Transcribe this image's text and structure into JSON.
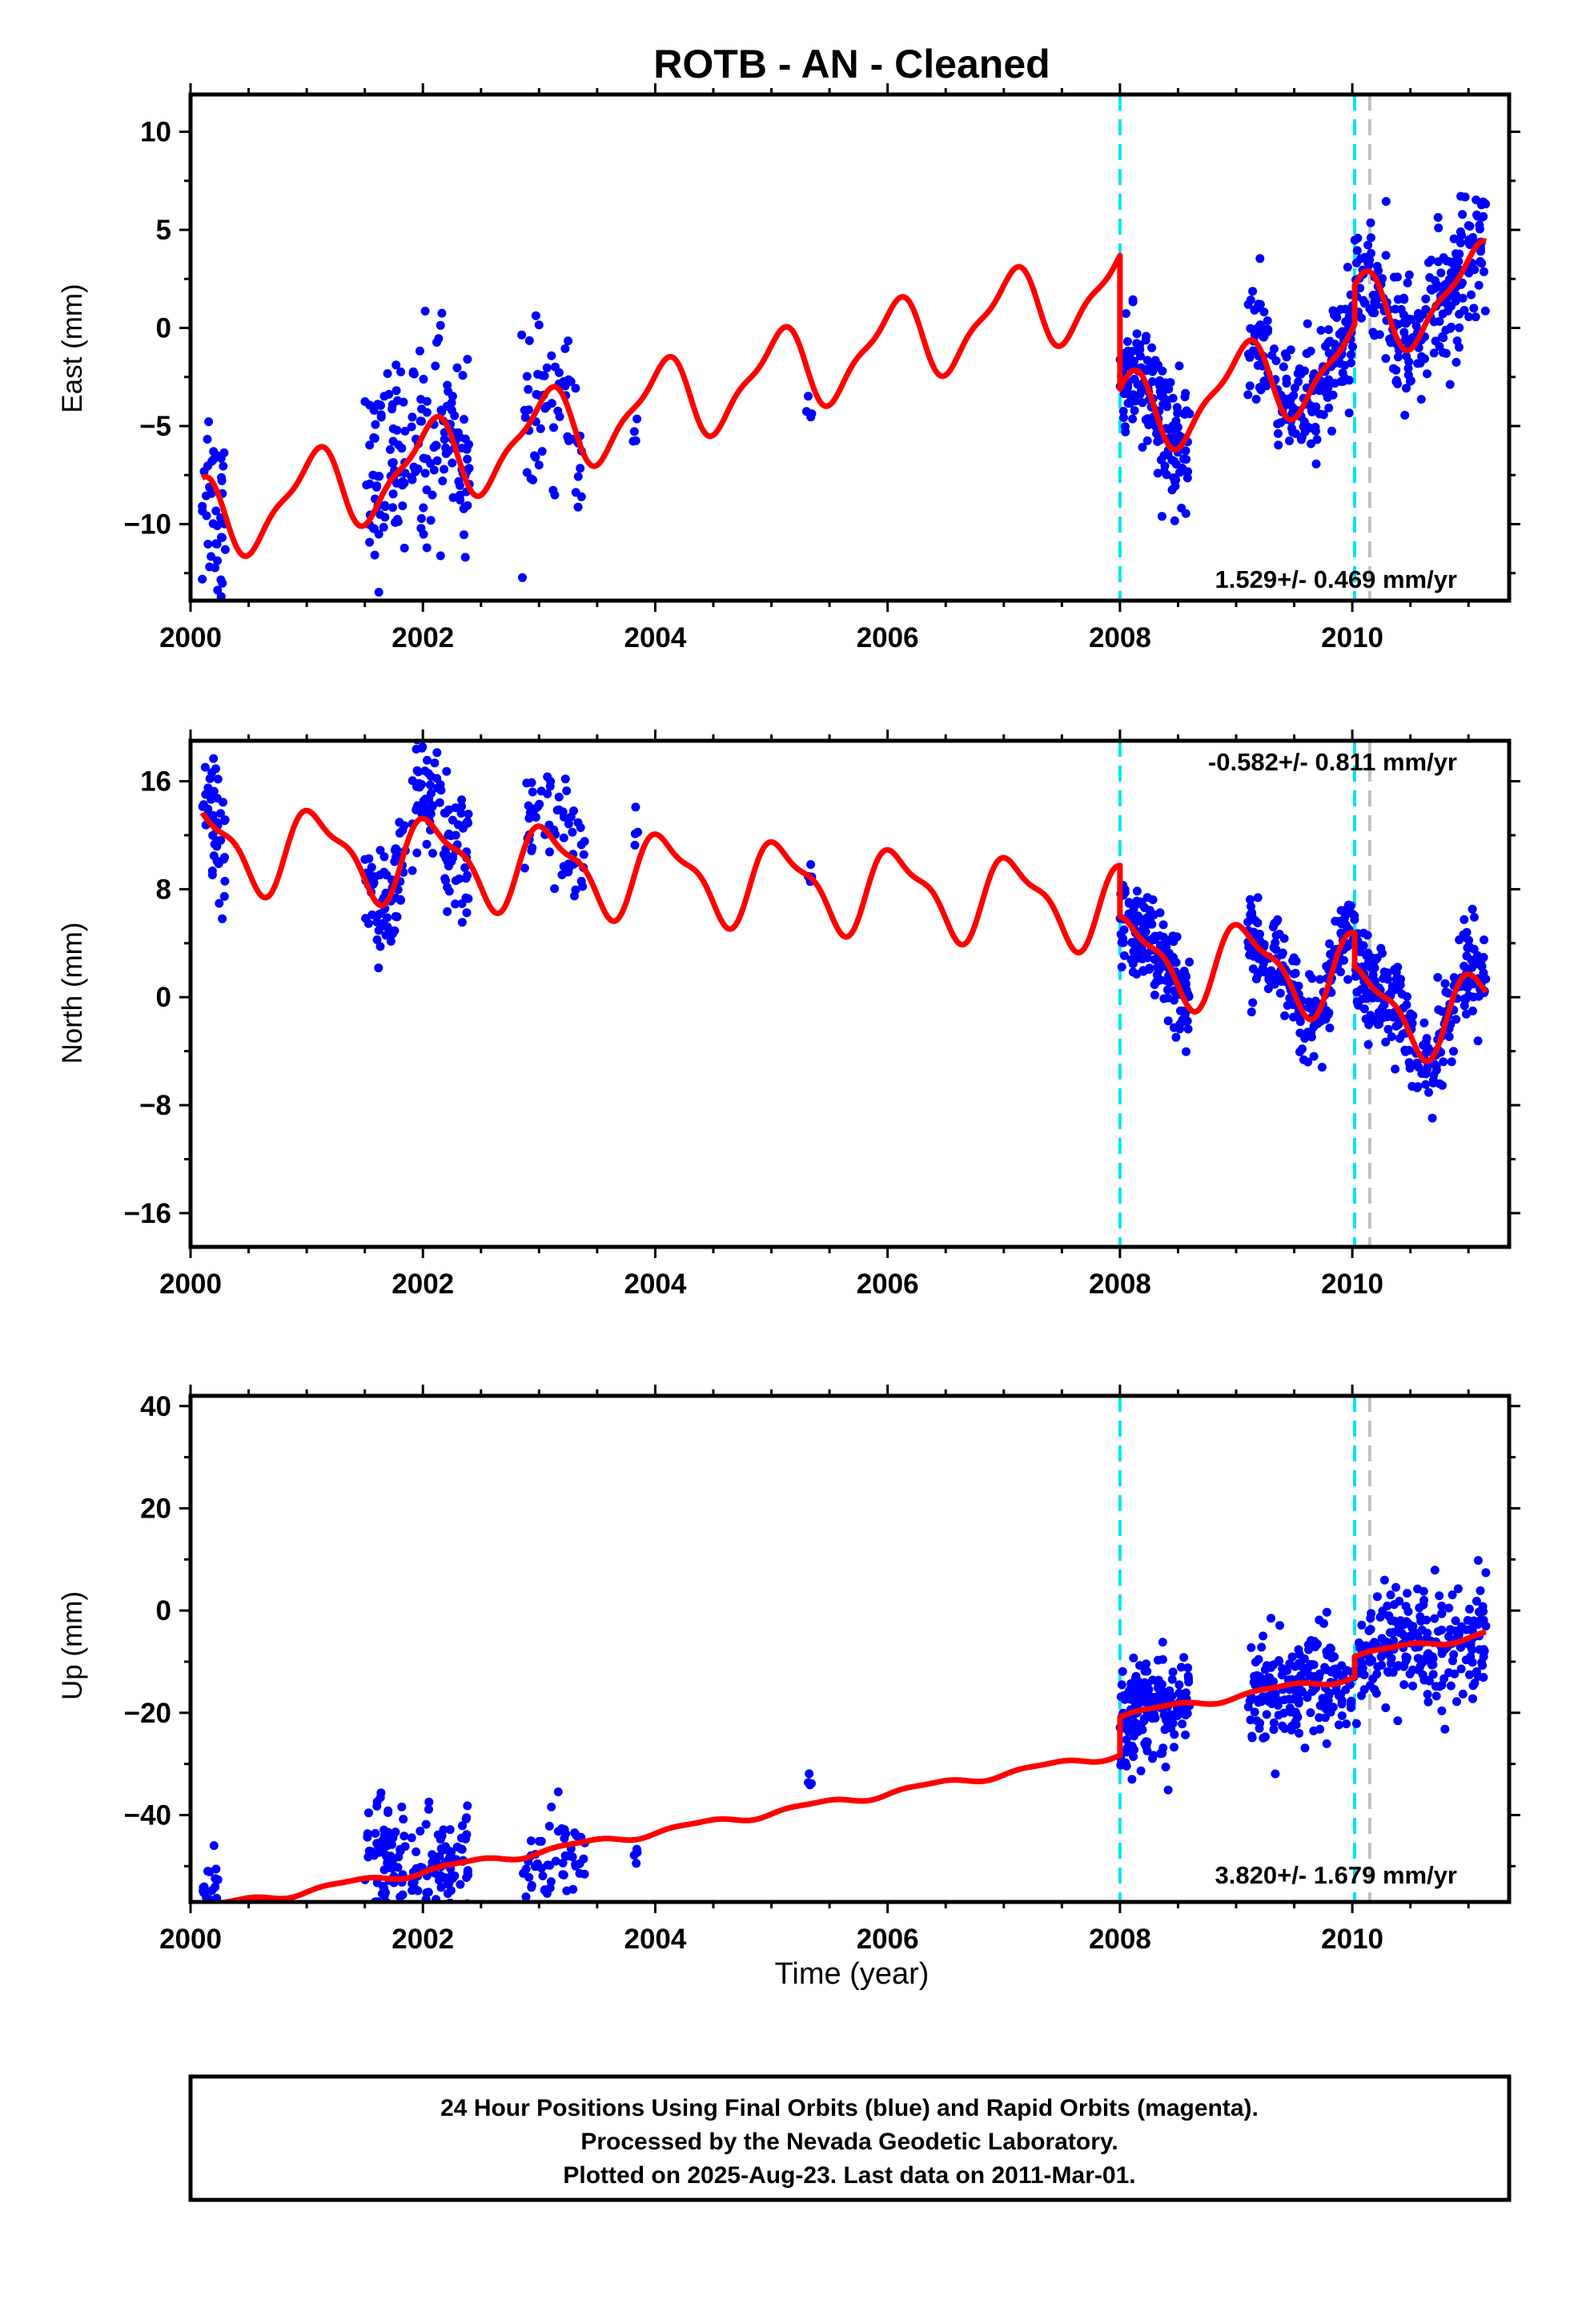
{
  "figure": {
    "title": "ROTB  - AN - Cleaned",
    "caption_lines": [
      "24 Hour Positions Using Final Orbits (blue) and Rapid Orbits (magenta).",
      "Processed by the Nevada Geodetic Laboratory.",
      "Plotted on 2025-Aug-23. Last data on 2011-Mar-01."
    ],
    "colors": {
      "points": "#0000ff",
      "model": "#ff0000",
      "equipment_change": "#00e5ee",
      "event": "#c0c0c0"
    }
  },
  "chart_data": [
    {
      "type": "scatter",
      "ylabel": "East (mm)",
      "xlabel": "",
      "xlim": [
        2000,
        2011.35
      ],
      "ylim": [
        -13.9,
        11.9
      ],
      "xticks": [
        2000,
        2002,
        2004,
        2006,
        2008,
        2010
      ],
      "yticks": [
        -10,
        -5,
        0,
        5,
        10
      ],
      "rate_text": "1.529+/- 0.469 mm/yr",
      "rate_position": "bottom-right",
      "vertical_lines": [
        {
          "x": 2008.0,
          "style": "equipment_change"
        },
        {
          "x": 2010.02,
          "style": "equipment_change"
        },
        {
          "x": 2010.15,
          "style": "event"
        }
      ],
      "model": {
        "rate": 1.529,
        "offset": -2.4,
        "annual_sin": 0.6,
        "annual_cos": 1.9,
        "semi_sin": 0.5,
        "semi_cos": -0.4,
        "steps": [
          {
            "x": 2008.0,
            "size": -6.8
          },
          {
            "x": 2010.02,
            "size": 2.0
          }
        ]
      },
      "point_segments": [
        {
          "start": 2000.1,
          "end": 2000.3,
          "count": 45,
          "spread": 2.8,
          "shift": -0.6
        },
        {
          "start": 2001.5,
          "end": 2001.85,
          "count": 70,
          "spread": 2.4,
          "shift": 1.2
        },
        {
          "start": 2001.9,
          "end": 2002.18,
          "count": 50,
          "spread": 3.0,
          "shift": -0.4
        },
        {
          "start": 2002.18,
          "end": 2002.4,
          "count": 50,
          "spread": 2.0,
          "shift": 0.6
        },
        {
          "start": 2002.85,
          "end": 2003.4,
          "count": 60,
          "spread": 2.0,
          "shift": -0.4
        },
        {
          "start": 2003.8,
          "end": 2003.85,
          "count": 4,
          "spread": 0.6,
          "shift": -1.2
        },
        {
          "start": 2005.3,
          "end": 2005.35,
          "count": 4,
          "spread": 0.7,
          "shift": -2.0
        },
        {
          "start": 2008.0,
          "end": 2008.6,
          "count": 180,
          "spread": 1.5,
          "shift": 0.0
        },
        {
          "start": 2009.1,
          "end": 2010.1,
          "count": 220,
          "spread": 1.5,
          "shift": 0.0
        },
        {
          "start": 2010.1,
          "end": 2011.15,
          "count": 230,
          "spread": 1.7,
          "shift": 0.0
        }
      ]
    },
    {
      "type": "scatter",
      "ylabel": "North (mm)",
      "xlabel": "",
      "xlim": [
        2000,
        2011.35
      ],
      "ylim": [
        -18.5,
        19.0
      ],
      "xticks": [
        2000,
        2002,
        2004,
        2006,
        2008,
        2010
      ],
      "yticks": [
        -16,
        -8,
        0,
        8,
        16
      ],
      "rate_text": "-0.582+/- 0.811 mm/yr",
      "rate_position": "top-right",
      "vertical_lines": [
        {
          "x": 2008.0,
          "style": "equipment_change"
        },
        {
          "x": 2010.02,
          "style": "equipment_change"
        },
        {
          "x": 2010.15,
          "style": "event"
        }
      ],
      "model": {
        "rate": -0.582,
        "offset": 8.5,
        "annual_sin": 1.6,
        "annual_cos": 2.4,
        "semi_sin": -0.8,
        "semi_cos": 0.6,
        "steps": [
          {
            "x": 2008.0,
            "size": -3.8
          },
          {
            "x": 2010.02,
            "size": -2.5
          }
        ]
      },
      "point_segments": [
        {
          "start": 2000.1,
          "end": 2000.3,
          "count": 45,
          "spread": 2.8,
          "shift": 1.0
        },
        {
          "start": 2001.5,
          "end": 2001.85,
          "count": 70,
          "spread": 2.2,
          "shift": -0.5
        },
        {
          "start": 2001.9,
          "end": 2002.18,
          "count": 50,
          "spread": 2.5,
          "shift": 1.5
        },
        {
          "start": 2002.18,
          "end": 2002.4,
          "count": 50,
          "spread": 2.5,
          "shift": 0.0
        },
        {
          "start": 2002.85,
          "end": 2003.4,
          "count": 60,
          "spread": 2.2,
          "shift": 0.5
        },
        {
          "start": 2003.8,
          "end": 2003.85,
          "count": 4,
          "spread": 1.0,
          "shift": 2.5
        },
        {
          "start": 2005.3,
          "end": 2005.35,
          "count": 4,
          "spread": 0.8,
          "shift": -0.3
        },
        {
          "start": 2008.0,
          "end": 2008.6,
          "count": 180,
          "spread": 1.6,
          "shift": 0.0
        },
        {
          "start": 2009.1,
          "end": 2010.1,
          "count": 220,
          "spread": 1.6,
          "shift": 0.0
        },
        {
          "start": 2010.1,
          "end": 2011.15,
          "count": 230,
          "spread": 1.9,
          "shift": 0.0
        }
      ]
    },
    {
      "type": "scatter",
      "ylabel": "Up (mm)",
      "xlabel": "Time (year)",
      "xlim": [
        2000,
        2011.35
      ],
      "ylim": [
        -57,
        42
      ],
      "xticks": [
        2000,
        2002,
        2004,
        2006,
        2008,
        2010
      ],
      "yticks": [
        -40,
        -20,
        0,
        20,
        40
      ],
      "rate_text": "3.820+/- 1.679 mm/yr",
      "rate_position": "bottom-right",
      "vertical_lines": [
        {
          "x": 2008.0,
          "style": "equipment_change"
        },
        {
          "x": 2010.02,
          "style": "equipment_change"
        },
        {
          "x": 2010.15,
          "style": "event"
        }
      ],
      "model": {
        "rate": 3.82,
        "offset": -39.5,
        "annual_sin": 0.5,
        "annual_cos": -0.4,
        "semi_sin": 0.2,
        "semi_cos": 0.1,
        "steps": [
          {
            "x": 2008.0,
            "size": 7.5
          },
          {
            "x": 2010.02,
            "size": 4.0
          }
        ]
      },
      "point_segments": [
        {
          "start": 2000.1,
          "end": 2000.3,
          "count": 45,
          "spread": 5.0,
          "shift": -1.0
        },
        {
          "start": 2001.5,
          "end": 2001.85,
          "count": 70,
          "spread": 6.0,
          "shift": 4.0
        },
        {
          "start": 2001.9,
          "end": 2002.18,
          "count": 50,
          "spread": 5.5,
          "shift": 0.0
        },
        {
          "start": 2002.18,
          "end": 2002.4,
          "count": 50,
          "spread": 5.5,
          "shift": -3.0
        },
        {
          "start": 2002.85,
          "end": 2003.4,
          "count": 60,
          "spread": 5.0,
          "shift": -5.0
        },
        {
          "start": 2003.8,
          "end": 2003.85,
          "count": 4,
          "spread": 1.5,
          "shift": -3.0
        },
        {
          "start": 2005.3,
          "end": 2005.35,
          "count": 4,
          "spread": 2.0,
          "shift": 6.0
        },
        {
          "start": 2008.0,
          "end": 2008.6,
          "count": 180,
          "spread": 5.0,
          "shift": 0.0
        },
        {
          "start": 2009.1,
          "end": 2010.1,
          "count": 220,
          "spread": 5.0,
          "shift": 0.0
        },
        {
          "start": 2010.1,
          "end": 2011.15,
          "count": 230,
          "spread": 5.5,
          "shift": 0.0
        }
      ]
    }
  ]
}
